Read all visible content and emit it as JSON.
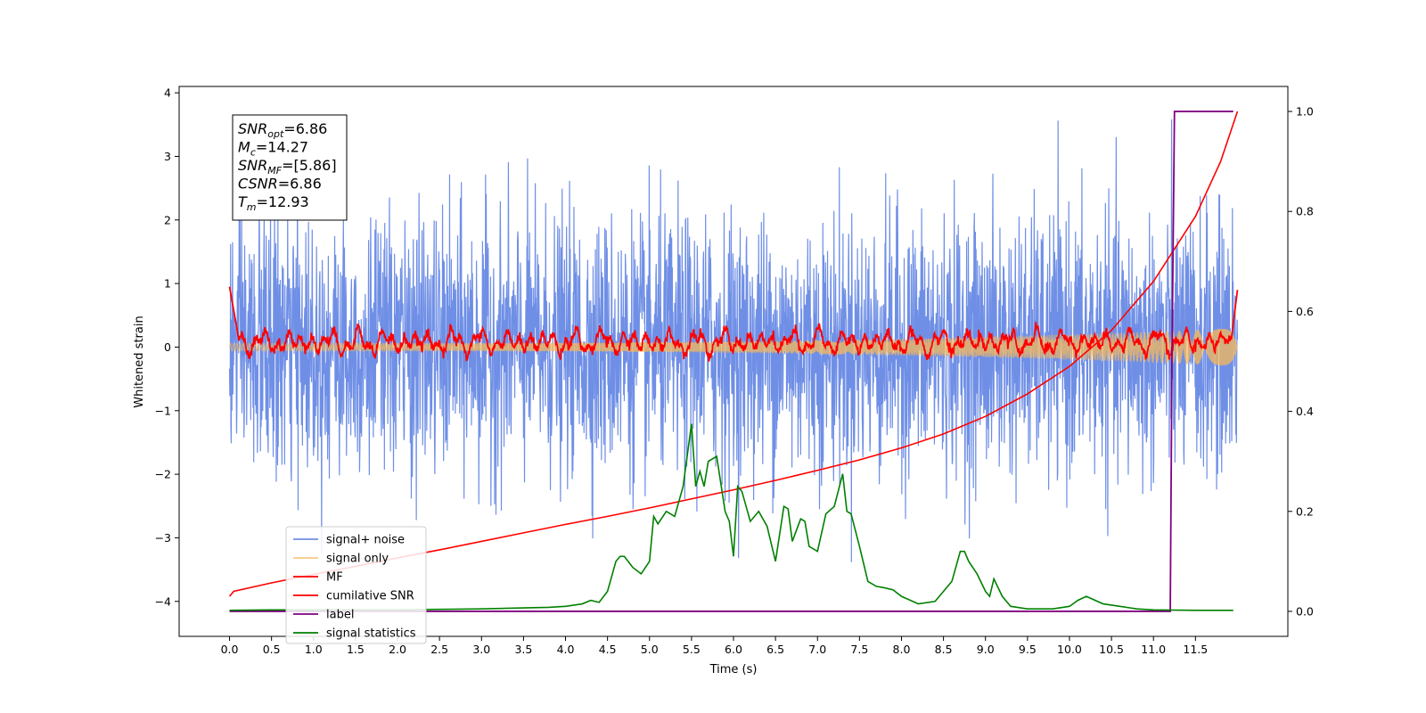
{
  "chart_data": {
    "type": "line",
    "title": "",
    "xlabel": "Time (s)",
    "ylabel": "Whitened strain",
    "xlim": [
      -0.6,
      12.6
    ],
    "ylim": [
      -4.55,
      4.1
    ],
    "y2lim": [
      -0.05,
      1.05
    ],
    "x_ticks": [
      0.0,
      0.5,
      1.0,
      1.5,
      2.0,
      2.5,
      3.0,
      3.5,
      4.0,
      4.5,
      5.0,
      5.5,
      6.0,
      6.5,
      7.0,
      7.5,
      8.0,
      8.5,
      9.0,
      9.5,
      10.0,
      10.5,
      11.0,
      11.5
    ],
    "x_tick_labels": [
      "0.0",
      "0.5",
      "1.0",
      "1.5",
      "2.0",
      "2.5",
      "3.0",
      "3.5",
      "4.0",
      "4.5",
      "5.0",
      "5.5",
      "6.0",
      "6.5",
      "7.0",
      "7.5",
      "8.0",
      "8.5",
      "9.0",
      "9.5",
      "10.0",
      "10.5",
      "11.0",
      "11.5"
    ],
    "y_ticks": [
      4,
      3,
      2,
      1,
      0,
      -1,
      -2,
      -3,
      -4
    ],
    "y_tick_labels": [
      "4",
      "3",
      "2",
      "1",
      "0",
      "−1",
      "−2",
      "−3",
      "−4"
    ],
    "y2_ticks": [
      1.0,
      0.8,
      0.6,
      0.4,
      0.2,
      0.0
    ],
    "y2_tick_labels": [
      "1.0",
      "0.8",
      "0.6",
      "0.4",
      "0.2",
      "0.0"
    ],
    "grid": false,
    "legend_position": "lower-left",
    "colors": {
      "signal_noise": "#6f8fe6",
      "signal_only": "#f5b85a",
      "mf": "#ff0000",
      "cumulative_snr": "#ff0000",
      "label": "#800080",
      "signal_statistics": "#008000"
    },
    "series": [
      {
        "name": "signal+ noise",
        "axis": "left",
        "style": "noise",
        "x_range": [
          0.0,
          12.0
        ],
        "amplitude_std": 1.0,
        "max": 3.72,
        "min": -4.15
      },
      {
        "name": "signal only",
        "axis": "left",
        "style": "chirp",
        "x_range": [
          0.0,
          12.0
        ],
        "amplitude_start": 0.06,
        "amplitude_end": 0.3
      },
      {
        "name": "MF",
        "axis": "left",
        "style": "oscillating",
        "x_range": [
          0.0,
          12.0
        ],
        "start_value": 0.95,
        "end_value": 0.9,
        "amplitude": 0.3
      },
      {
        "name": "cumilative SNR",
        "axis": "right",
        "x": [
          0.0,
          0.05,
          0.5,
          1.0,
          1.5,
          2.0,
          2.5,
          3.0,
          3.5,
          4.0,
          4.5,
          5.0,
          5.5,
          6.0,
          6.5,
          7.0,
          7.5,
          8.0,
          8.5,
          9.0,
          9.5,
          10.0,
          10.5,
          11.0,
          11.5,
          11.8,
          12.0
        ],
        "y": [
          0.03,
          0.04,
          0.057,
          0.074,
          0.09,
          0.107,
          0.123,
          0.14,
          0.157,
          0.174,
          0.19,
          0.207,
          0.225,
          0.243,
          0.262,
          0.282,
          0.303,
          0.327,
          0.355,
          0.39,
          0.435,
          0.49,
          0.562,
          0.66,
          0.79,
          0.9,
          1.0
        ]
      },
      {
        "name": "label",
        "axis": "right",
        "x": [
          0.0,
          11.2,
          11.22,
          11.25,
          11.5,
          11.95
        ],
        "y": [
          0.0,
          0.0,
          0.5,
          1.0,
          1.0,
          1.0
        ]
      },
      {
        "name": "signal statistics",
        "axis": "right",
        "x": [
          0.0,
          0.5,
          1.0,
          1.5,
          2.0,
          2.5,
          3.0,
          3.5,
          3.8,
          4.0,
          4.2,
          4.3,
          4.4,
          4.5,
          4.55,
          4.6,
          4.65,
          4.7,
          4.8,
          4.9,
          5.0,
          5.05,
          5.1,
          5.2,
          5.3,
          5.4,
          5.5,
          5.55,
          5.6,
          5.65,
          5.7,
          5.8,
          5.9,
          5.95,
          6.0,
          6.05,
          6.1,
          6.2,
          6.3,
          6.4,
          6.5,
          6.6,
          6.65,
          6.7,
          6.8,
          6.85,
          6.9,
          7.0,
          7.1,
          7.2,
          7.3,
          7.35,
          7.4,
          7.5,
          7.6,
          7.7,
          7.8,
          7.9,
          8.0,
          8.2,
          8.4,
          8.5,
          8.6,
          8.7,
          8.75,
          8.8,
          8.9,
          9.0,
          9.05,
          9.1,
          9.2,
          9.3,
          9.5,
          9.8,
          10.0,
          10.1,
          10.2,
          10.4,
          10.6,
          10.8,
          11.0,
          11.5,
          11.95
        ],
        "y": [
          0.002,
          0.003,
          0.003,
          0.003,
          0.003,
          0.004,
          0.005,
          0.007,
          0.008,
          0.01,
          0.015,
          0.022,
          0.018,
          0.04,
          0.07,
          0.1,
          0.11,
          0.11,
          0.088,
          0.075,
          0.1,
          0.19,
          0.175,
          0.2,
          0.19,
          0.25,
          0.375,
          0.25,
          0.28,
          0.25,
          0.3,
          0.31,
          0.2,
          0.18,
          0.11,
          0.25,
          0.24,
          0.18,
          0.2,
          0.17,
          0.1,
          0.21,
          0.205,
          0.14,
          0.185,
          0.18,
          0.13,
          0.12,
          0.195,
          0.21,
          0.275,
          0.2,
          0.195,
          0.13,
          0.06,
          0.05,
          0.047,
          0.043,
          0.03,
          0.015,
          0.02,
          0.04,
          0.06,
          0.12,
          0.12,
          0.1,
          0.075,
          0.04,
          0.03,
          0.065,
          0.03,
          0.01,
          0.005,
          0.005,
          0.01,
          0.022,
          0.03,
          0.015,
          0.01,
          0.005,
          0.003,
          0.002,
          0.002
        ]
      }
    ],
    "annotation": [
      {
        "base": "SNR",
        "sub": "opt",
        "value": "=6.86"
      },
      {
        "base": "M",
        "sub": "c",
        "value": "=14.27"
      },
      {
        "base": "SNR",
        "sub": "MF",
        "value": "=[5.86]"
      },
      {
        "base": "CSNR",
        "sub": "",
        "value": "=6.86"
      },
      {
        "base": "T",
        "sub": "m",
        "value": "=12.93"
      }
    ]
  }
}
